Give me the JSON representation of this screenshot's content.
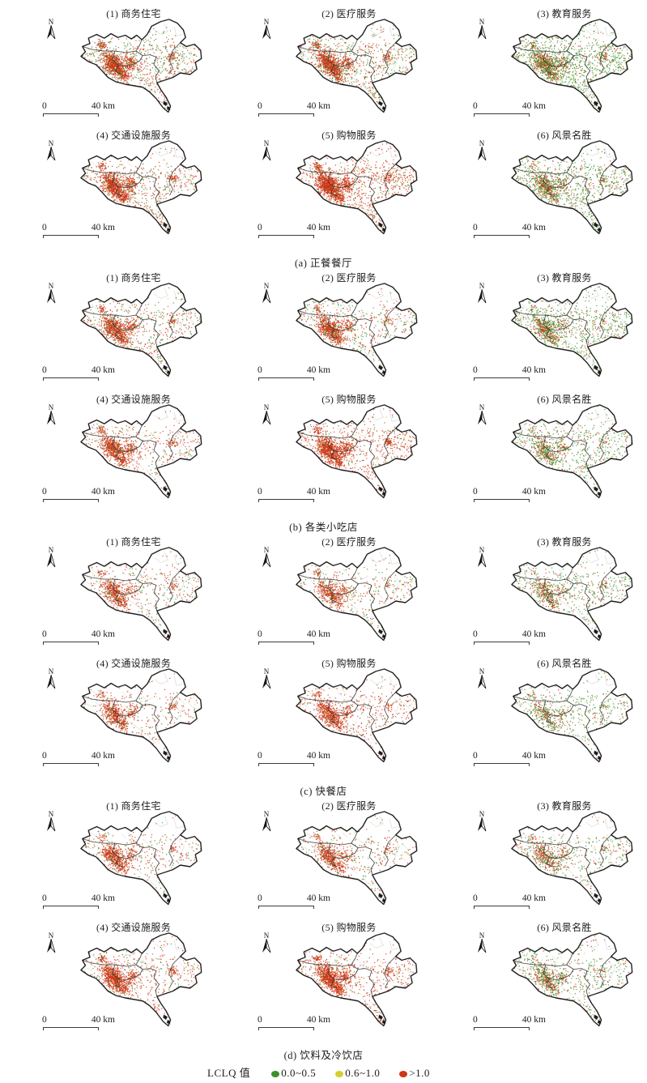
{
  "figure": {
    "map_ui": {
      "north_label": "N",
      "scale_start": "0",
      "scale_end": "40 km"
    },
    "legend": {
      "title": "LCLQ 值",
      "items": [
        {
          "label": "0.0~0.5",
          "color": "#3f8f2a"
        },
        {
          "label": "0.6~1.0",
          "color": "#d6ce2e"
        },
        {
          "label": ">1.0",
          "color": "#cf3517"
        }
      ]
    },
    "sections": [
      {
        "id": "a",
        "caption": "(a) 正餐餐厅",
        "maps": [
          {
            "title": "(1) 商务住宅",
            "dots": {
              "core": 1000,
              "scatter": 600,
              "green": 0.48,
              "yellow": 0.03,
              "core_green": 0.08
            }
          },
          {
            "title": "(2) 医疗服务",
            "dots": {
              "core": 950,
              "scatter": 650,
              "green": 0.45,
              "yellow": 0.04,
              "core_green": 0.08
            }
          },
          {
            "title": "(3) 教育服务",
            "dots": {
              "core": 700,
              "scatter": 900,
              "green": 0.78,
              "yellow": 0.03,
              "core_green": 0.45
            }
          },
          {
            "title": "(4) 交通设施服务",
            "dots": {
              "core": 1000,
              "scatter": 500,
              "green": 0.3,
              "yellow": 0.06,
              "core_green": 0.05
            }
          },
          {
            "title": "(5) 购物服务",
            "dots": {
              "core": 1200,
              "scatter": 700,
              "green": 0.15,
              "yellow": 0.04,
              "core_green": 0.03
            }
          },
          {
            "title": "(6) 风景名胜",
            "dots": {
              "core": 500,
              "scatter": 700,
              "green": 0.72,
              "yellow": 0.05,
              "core_green": 0.5
            }
          }
        ]
      },
      {
        "id": "b",
        "caption": "(b) 各类小吃店",
        "maps": [
          {
            "title": "(1) 商务住宅",
            "dots": {
              "core": 800,
              "scatter": 450,
              "green": 0.4,
              "yellow": 0.04,
              "core_green": 0.07
            }
          },
          {
            "title": "(2) 医疗服务",
            "dots": {
              "core": 750,
              "scatter": 430,
              "green": 0.42,
              "yellow": 0.04,
              "core_green": 0.08
            }
          },
          {
            "title": "(3) 教育服务",
            "dots": {
              "core": 500,
              "scatter": 650,
              "green": 0.75,
              "yellow": 0.03,
              "core_green": 0.45
            }
          },
          {
            "title": "(4) 交通设施服务",
            "dots": {
              "core": 800,
              "scatter": 380,
              "green": 0.28,
              "yellow": 0.05,
              "core_green": 0.05
            }
          },
          {
            "title": "(5) 购物服务",
            "dots": {
              "core": 1000,
              "scatter": 520,
              "green": 0.12,
              "yellow": 0.04,
              "core_green": 0.03
            }
          },
          {
            "title": "(6) 风景名胜",
            "dots": {
              "core": 380,
              "scatter": 520,
              "green": 0.7,
              "yellow": 0.05,
              "core_green": 0.5
            }
          }
        ]
      },
      {
        "id": "c",
        "caption": "(c) 快餐店",
        "maps": [
          {
            "title": "(1) 商务住宅",
            "dots": {
              "core": 550,
              "scatter": 320,
              "green": 0.35,
              "yellow": 0.04,
              "core_green": 0.06
            }
          },
          {
            "title": "(2) 医疗服务",
            "dots": {
              "core": 500,
              "scatter": 300,
              "green": 0.4,
              "yellow": 0.05,
              "core_green": 0.08
            }
          },
          {
            "title": "(3) 教育服务",
            "dots": {
              "core": 380,
              "scatter": 430,
              "green": 0.7,
              "yellow": 0.04,
              "core_green": 0.4
            }
          },
          {
            "title": "(4) 交通设施服务",
            "dots": {
              "core": 550,
              "scatter": 270,
              "green": 0.25,
              "yellow": 0.05,
              "core_green": 0.05
            }
          },
          {
            "title": "(5) 购物服务",
            "dots": {
              "core": 650,
              "scatter": 350,
              "green": 0.12,
              "yellow": 0.04,
              "core_green": 0.03
            }
          },
          {
            "title": "(6) 风景名胜",
            "dots": {
              "core": 280,
              "scatter": 380,
              "green": 0.68,
              "yellow": 0.06,
              "core_green": 0.5
            }
          }
        ]
      },
      {
        "id": "d",
        "caption": "(d) 饮料及冷饮店",
        "maps": [
          {
            "title": "(1) 商务住宅",
            "dots": {
              "core": 600,
              "scatter": 300,
              "green": 0.35,
              "yellow": 0.04,
              "core_green": 0.06
            }
          },
          {
            "title": "(2) 医疗服务",
            "dots": {
              "core": 550,
              "scatter": 280,
              "green": 0.38,
              "yellow": 0.05,
              "core_green": 0.07
            }
          },
          {
            "title": "(3) 教育服务",
            "dots": {
              "core": 420,
              "scatter": 380,
              "green": 0.6,
              "yellow": 0.05,
              "core_green": 0.35
            }
          },
          {
            "title": "(4) 交通设施服务",
            "dots": {
              "core": 900,
              "scatter": 420,
              "green": 0.22,
              "yellow": 0.06,
              "core_green": 0.04
            }
          },
          {
            "title": "(5) 购物服务",
            "dots": {
              "core": 950,
              "scatter": 430,
              "green": 0.12,
              "yellow": 0.04,
              "core_green": 0.03
            }
          },
          {
            "title": "(6) 风景名胜",
            "dots": {
              "core": 420,
              "scatter": 420,
              "green": 0.65,
              "yellow": 0.05,
              "core_green": 0.45
            }
          }
        ]
      }
    ]
  }
}
